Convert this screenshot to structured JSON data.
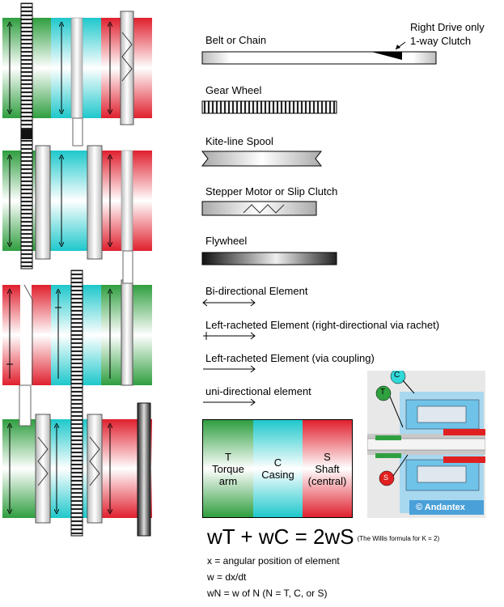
{
  "legend": {
    "belt_label": "Belt or Chain",
    "clutch_note_line1": "Right Drive only",
    "clutch_note_line2": "1-way Clutch",
    "gear_label": "Gear Wheel",
    "spool_label": "Kite-line Spool",
    "stepper_label": "Stepper Motor or Slip Clutch",
    "flywheel_label": "Flywheel",
    "bidir_label": "Bi-directional Element",
    "left_racheted_label": "Left-racheted Element (right-directional via rachet)",
    "left_coupling_label": "Left-racheted Element (via coupling)",
    "unidir_label": "uni-directional element"
  },
  "elements": {
    "t_letter": "T",
    "t_line1": "Torque",
    "t_line2": "arm",
    "c_letter": "C",
    "c_line1": "Casing",
    "s_letter": "S",
    "s_line1": "Shaft",
    "s_line2": "(central)"
  },
  "photo": {
    "badge_c": "C",
    "badge_t": "T",
    "badge_s": "S",
    "copyright": "© Andantex"
  },
  "formula": {
    "equation": "wT + wC = 2wS",
    "note": "(The Willis formula for K = 2)"
  },
  "definitions": {
    "x_def": "x = angular position of element",
    "w_def": "w = dx/dt",
    "wn_def": "wN = w of N (N = T, C, or S)"
  },
  "colors": {
    "torque": "#3cb44b",
    "casing": "#30d8d8",
    "shaft": "#e8323c"
  }
}
